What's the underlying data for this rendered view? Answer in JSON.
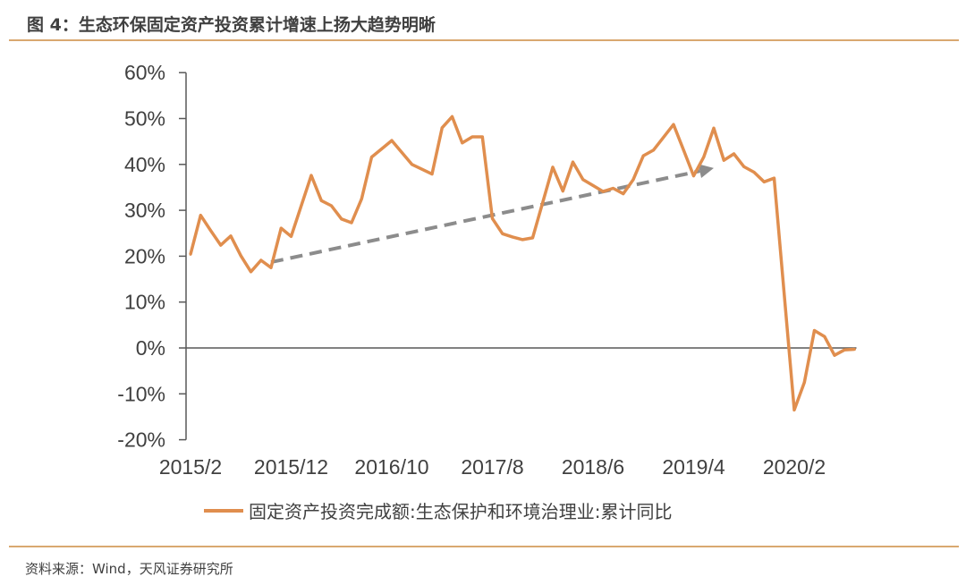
{
  "header": {
    "title": "图 4：生态环保固定资产投资累计增速上扬大趋势明晰"
  },
  "footer": {
    "source": "资料来源：Wind，天风证券研究所"
  },
  "colors": {
    "series": "#E08E4E",
    "rule": "#D9A870",
    "axis": "#595959",
    "arrow": "#8C8C8C"
  },
  "chart_data": {
    "type": "line",
    "title": "",
    "xlabel": "",
    "ylabel": "",
    "ylim": [
      -20,
      60
    ],
    "y_ticks": [
      "60%",
      "50%",
      "40%",
      "30%",
      "20%",
      "10%",
      "0%",
      "-10%",
      "-20%"
    ],
    "y_tick_values": [
      60,
      50,
      40,
      30,
      20,
      10,
      0,
      -10,
      -20
    ],
    "x_ticks": [
      "2015/2",
      "2015/12",
      "2016/10",
      "2017/8",
      "2018/6",
      "2019/4",
      "2020/2"
    ],
    "grid": false,
    "legend_placement": "bottom",
    "series": [
      {
        "name": "固定资产投资完成额:生态保护和环境治理业:累计同比",
        "x": [
          "2015/2",
          "2015/3",
          "2015/4",
          "2015/5",
          "2015/6",
          "2015/7",
          "2015/8",
          "2015/9",
          "2015/10",
          "2015/11",
          "2015/12",
          "2016/2",
          "2016/3",
          "2016/4",
          "2016/5",
          "2016/6",
          "2016/7",
          "2016/8",
          "2016/9",
          "2016/10",
          "2016/11",
          "2016/12",
          "2017/2",
          "2017/3",
          "2017/4",
          "2017/5",
          "2017/6",
          "2017/7",
          "2017/8",
          "2017/9",
          "2017/10",
          "2017/11",
          "2017/12",
          "2018/2",
          "2018/3",
          "2018/4",
          "2018/5",
          "2018/6",
          "2018/7",
          "2018/8",
          "2018/9",
          "2018/10",
          "2018/11",
          "2018/12",
          "2019/2",
          "2019/3",
          "2019/4",
          "2019/5",
          "2019/6",
          "2019/7",
          "2019/8",
          "2019/9",
          "2019/10",
          "2019/11",
          "2019/12",
          "2020/2",
          "2020/3",
          "2020/4",
          "2020/5",
          "2020/6",
          "2020/7",
          "2020/8"
        ],
        "values": [
          20.4,
          28.9,
          25.6,
          22.4,
          24.4,
          20.1,
          16.6,
          19.1,
          17.5,
          26.1,
          24.3,
          37.6,
          32.1,
          31.0,
          28.1,
          27.3,
          32.5,
          41.6,
          43.4,
          45.2,
          42.6,
          40.0,
          37.9,
          48.0,
          50.4,
          44.7,
          46.0,
          46.0,
          28.2,
          24.9,
          24.2,
          23.6,
          24.0,
          39.4,
          34.2,
          40.5,
          36.7,
          35.4,
          34.1,
          34.8,
          33.6,
          36.7,
          41.9,
          43.1,
          48.7,
          43.1,
          37.5,
          41.6,
          47.9,
          40.9,
          42.3,
          39.5,
          38.3,
          36.2,
          37.0,
          -13.5,
          -7.5,
          3.8,
          2.5,
          -1.6,
          -0.4,
          -0.3
        ]
      }
    ],
    "annotations": [
      {
        "type": "dashed-arrow",
        "from": [
          "2015/10",
          18.7
        ],
        "to": [
          "2019/6",
          39.2
        ]
      }
    ]
  }
}
